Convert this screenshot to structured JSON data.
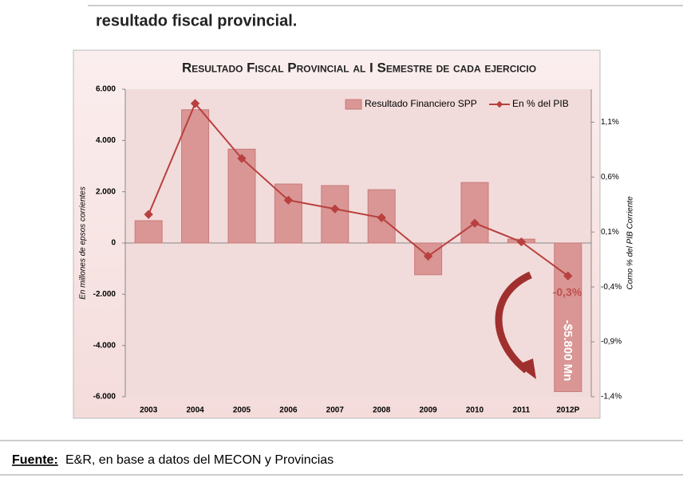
{
  "header": {
    "title": "resultado fiscal provincial."
  },
  "chart_data": {
    "type": "bar_line",
    "title": "Resultado Fiscal Provincial al I Semestre de cada ejercicio",
    "y_label": "En millones de epsos corrientes",
    "y2_label": "Como % del PIB Corriente",
    "categories": [
      "2003",
      "2004",
      "2005",
      "2006",
      "2007",
      "2008",
      "2009",
      "2010",
      "2011",
      "2012P"
    ],
    "series": [
      {
        "name": "Resultado Financiero SPP",
        "type": "bar",
        "color": "#d99694",
        "values": [
          870,
          5200,
          3660,
          2300,
          2240,
          2080,
          -1240,
          2360,
          150,
          -5800
        ]
      },
      {
        "name": "En % del PIB",
        "type": "line",
        "axis": "y2",
        "color": "#b8403e",
        "values": [
          0.26,
          1.27,
          0.77,
          0.39,
          0.31,
          0.23,
          -0.12,
          0.18,
          0.01,
          -0.3
        ]
      }
    ],
    "ylim": [
      -6000,
      6000
    ],
    "yticks": [
      {
        "value": -6000,
        "label": "-6.000"
      },
      {
        "value": -4000,
        "label": "-4.000"
      },
      {
        "value": -2000,
        "label": "-2.000"
      },
      0,
      {
        "value": 2000,
        "label": "2.000"
      },
      {
        "value": 4000,
        "label": "4.000"
      },
      {
        "value": 6000,
        "label": "6.000"
      }
    ],
    "y2lim": [
      -1.4,
      1.4
    ],
    "y2ticks": [
      {
        "value": -1.4,
        "label": "-1,4%"
      },
      {
        "value": -0.9,
        "label": "-0,9%"
      },
      {
        "value": -0.4,
        "label": "-0,4%"
      },
      {
        "value": 0.1,
        "label": "0,1%"
      },
      {
        "value": 0.6,
        "label": "0,6%"
      },
      {
        "value": 1.1,
        "label": "1,1%"
      }
    ],
    "annotations": [
      "-0,3%",
      "-$5.800 Mn"
    ],
    "legend": "top-right"
  },
  "footer": {
    "label": "Fuente:",
    "text": "E&R, en base a datos del MECON y Provincias"
  }
}
